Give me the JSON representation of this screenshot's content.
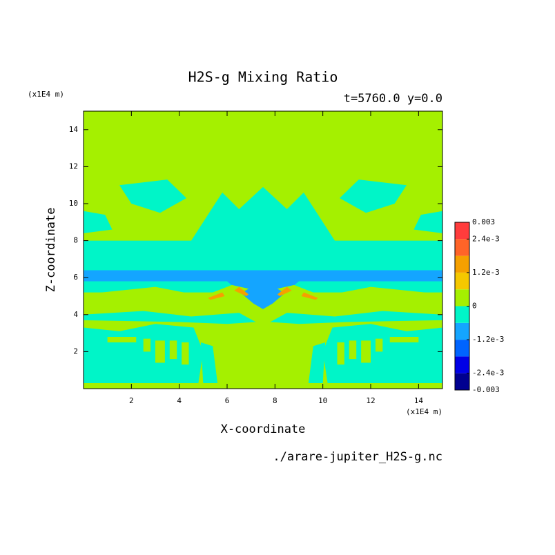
{
  "chart_data": {
    "type": "contour",
    "title": "H2S-g Mixing Ratio",
    "subtitle": "t=5760.0 y=0.0",
    "xlabel": "X-coordinate",
    "ylabel": "Z-coordinate",
    "x_unit": "(x1E4 m)",
    "y_unit": "(x1E4 m)",
    "source": "./arare-jupiter_H2S-g.nc",
    "xlim": [
      0,
      15
    ],
    "xticks": [
      2,
      4,
      6,
      8,
      10,
      12,
      14
    ],
    "ylim": [
      0,
      15
    ],
    "yticks": [
      2,
      4,
      6,
      8,
      10,
      12,
      14
    ],
    "colorbar": {
      "levels": [
        -0.003,
        -0.0024,
        -0.0018,
        -0.0012,
        -0.0006,
        0,
        0.0006,
        0.0012,
        0.0018,
        0.0024,
        0.003
      ],
      "colors": [
        "#000090",
        "#0000e6",
        "#0064ff",
        "#14a5ff",
        "#00f5c8",
        "#a5f000",
        "#f5c800",
        "#f5a000",
        "#ff6428",
        "#ff3c3c"
      ],
      "ticks": [
        0.003,
        {
          "value": 0.0024,
          "label": "2.4e-3"
        },
        {
          "value": 0.0012,
          "label": "1.2e-3"
        },
        0,
        {
          "value": -0.0012,
          "label": "-1.2e-3"
        },
        {
          "value": -0.0024,
          "label": "-2.4e-3"
        },
        -0.003
      ]
    }
  }
}
